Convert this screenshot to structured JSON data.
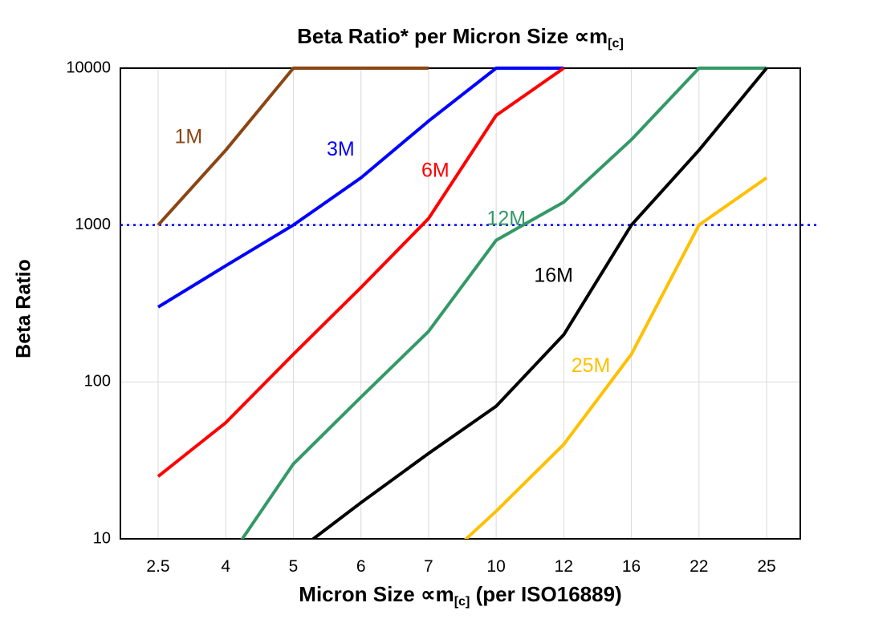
{
  "title": {
    "main": "Beta Ratio* per Micron Size ∝m",
    "sub": "[c]"
  },
  "y_axis": {
    "label": "Beta Ratio"
  },
  "x_axis": {
    "label_pre": "Micron Size ∝m",
    "label_sub": "[c]",
    "label_post": " (per ISO16889)"
  },
  "chart_data": {
    "type": "line",
    "title": "Beta Ratio* per Micron Size ∝m[c]",
    "xlabel": "Micron Size ∝m[c] (per ISO16889)",
    "ylabel": "Beta Ratio",
    "y_scale": "log",
    "ylim": [
      10,
      10000
    ],
    "y_ticks": [
      10,
      100,
      1000,
      10000
    ],
    "categories": [
      2.5,
      4,
      5,
      6,
      7,
      10,
      12,
      16,
      22,
      25
    ],
    "grid": {
      "color": "#d9d9d9",
      "vertical": true,
      "horizontal": true
    },
    "plot_border_color": "#000000",
    "reference_line": {
      "y": 1000,
      "color": "#0000ee",
      "style": "dotted"
    },
    "series": [
      {
        "name": "1M",
        "color": "#8B4513",
        "points": [
          [
            2.5,
            1000
          ],
          [
            4,
            3000
          ],
          [
            5,
            10000
          ],
          [
            7,
            10000
          ]
        ],
        "label": {
          "xi": 0.45,
          "y": 3600
        }
      },
      {
        "name": "3M",
        "color": "#0000FF",
        "points": [
          [
            2.5,
            300
          ],
          [
            4,
            550
          ],
          [
            5,
            1000
          ],
          [
            6,
            2000
          ],
          [
            7,
            4600
          ],
          [
            10,
            10000
          ],
          [
            12,
            10000
          ]
        ],
        "label": {
          "xi": 2.7,
          "y": 3000
        }
      },
      {
        "name": "6M",
        "color": "#FF0000",
        "points": [
          [
            2.5,
            25
          ],
          [
            4,
            55
          ],
          [
            5,
            150
          ],
          [
            6,
            400
          ],
          [
            7,
            1100
          ],
          [
            10,
            5000
          ],
          [
            12,
            10000
          ]
        ],
        "label": {
          "xi": 4.1,
          "y": 2200
        }
      },
      {
        "name": "12M",
        "color": "#339966",
        "points": [
          [
            4,
            7
          ],
          [
            5,
            30
          ],
          [
            6,
            80
          ],
          [
            7,
            210
          ],
          [
            10,
            800
          ],
          [
            12,
            1400
          ],
          [
            16,
            3500
          ],
          [
            22,
            10000
          ],
          [
            25,
            10000
          ]
        ],
        "label": {
          "xi": 5.15,
          "y": 1080
        }
      },
      {
        "name": "16M",
        "color": "#000000",
        "points": [
          [
            5,
            8
          ],
          [
            6,
            17
          ],
          [
            7,
            35
          ],
          [
            10,
            70
          ],
          [
            12,
            200
          ],
          [
            16,
            1000
          ],
          [
            22,
            3000
          ],
          [
            25,
            10000
          ]
        ],
        "label": {
          "xi": 5.85,
          "y": 470
        }
      },
      {
        "name": "25M",
        "color": "#FFC000",
        "points": [
          [
            7,
            6
          ],
          [
            10,
            15
          ],
          [
            12,
            40
          ],
          [
            16,
            150
          ],
          [
            22,
            1000
          ],
          [
            25,
            2000
          ]
        ],
        "label": {
          "xi": 6.4,
          "y": 125
        }
      }
    ]
  }
}
